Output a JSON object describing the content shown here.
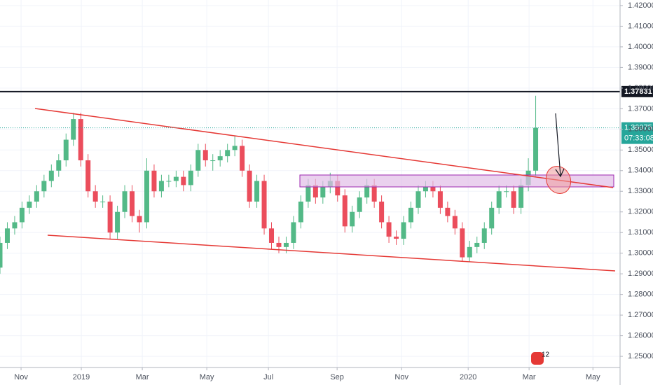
{
  "chart_data": {
    "type": "candlestick",
    "x": [
      0,
      1,
      2,
      3,
      4,
      5,
      6,
      7,
      8,
      9,
      10,
      11,
      12,
      13,
      14,
      15,
      16,
      17,
      18,
      19,
      20,
      21,
      22,
      23,
      24,
      25,
      26,
      27,
      28,
      29,
      30,
      31,
      32,
      33,
      34,
      35,
      36,
      37,
      38,
      39,
      40,
      41,
      42,
      43,
      44,
      45,
      46,
      47,
      48,
      49,
      50,
      51,
      52,
      53,
      54,
      55,
      56,
      57,
      58,
      59,
      60,
      61,
      62,
      63,
      64,
      65,
      66,
      67,
      68,
      69,
      70,
      71,
      72,
      73
    ],
    "open": [
      1.293,
      1.305,
      1.312,
      1.315,
      1.322,
      1.325,
      1.33,
      1.335,
      1.34,
      1.345,
      1.355,
      1.365,
      1.345,
      1.33,
      1.325,
      1.325,
      1.31,
      1.32,
      1.33,
      1.318,
      1.315,
      1.34,
      1.33,
      1.335,
      1.335,
      1.337,
      1.333,
      1.34,
      1.35,
      1.345,
      1.345,
      1.347,
      1.35,
      1.352,
      1.34,
      1.325,
      1.335,
      1.312,
      1.305,
      1.303,
      1.305,
      1.315,
      1.325,
      1.333,
      1.327,
      1.332,
      1.335,
      1.328,
      1.313,
      1.32,
      1.327,
      1.333,
      1.325,
      1.315,
      1.308,
      1.307,
      1.315,
      1.322,
      1.33,
      1.332,
      1.33,
      1.322,
      1.318,
      1.312,
      1.298,
      1.303,
      1.305,
      1.312,
      1.322,
      1.33,
      1.33,
      1.322,
      1.333,
      1.34
    ],
    "high": [
      1.308,
      1.315,
      1.318,
      1.325,
      1.328,
      1.333,
      1.338,
      1.343,
      1.348,
      1.358,
      1.368,
      1.368,
      1.348,
      1.333,
      1.328,
      1.328,
      1.323,
      1.333,
      1.333,
      1.321,
      1.346,
      1.343,
      1.338,
      1.338,
      1.34,
      1.34,
      1.343,
      1.353,
      1.353,
      1.348,
      1.35,
      1.353,
      1.357,
      1.355,
      1.343,
      1.338,
      1.338,
      1.315,
      1.308,
      1.308,
      1.318,
      1.328,
      1.336,
      1.336,
      1.335,
      1.339,
      1.338,
      1.331,
      1.323,
      1.33,
      1.336,
      1.336,
      1.328,
      1.318,
      1.311,
      1.318,
      1.325,
      1.333,
      1.335,
      1.335,
      1.333,
      1.325,
      1.321,
      1.315,
      1.306,
      1.308,
      1.315,
      1.325,
      1.333,
      1.333,
      1.333,
      1.336,
      1.346,
      1.3763
    ],
    "low": [
      1.29,
      1.302,
      1.309,
      1.312,
      1.319,
      1.322,
      1.327,
      1.332,
      1.337,
      1.342,
      1.352,
      1.342,
      1.327,
      1.322,
      1.322,
      1.307,
      1.307,
      1.317,
      1.315,
      1.31,
      1.312,
      1.327,
      1.327,
      1.332,
      1.332,
      1.33,
      1.33,
      1.337,
      1.342,
      1.34,
      1.342,
      1.344,
      1.347,
      1.337,
      1.322,
      1.322,
      1.309,
      1.302,
      1.3,
      1.3,
      1.302,
      1.312,
      1.322,
      1.324,
      1.324,
      1.329,
      1.325,
      1.31,
      1.31,
      1.317,
      1.324,
      1.322,
      1.312,
      1.305,
      1.304,
      1.304,
      1.312,
      1.319,
      1.327,
      1.327,
      1.319,
      1.315,
      1.309,
      1.296,
      1.296,
      1.3,
      1.302,
      1.309,
      1.319,
      1.327,
      1.319,
      1.319,
      1.33,
      1.337
    ],
    "close": [
      1.305,
      1.312,
      1.315,
      1.322,
      1.325,
      1.33,
      1.335,
      1.34,
      1.345,
      1.355,
      1.365,
      1.345,
      1.33,
      1.325,
      1.325,
      1.31,
      1.32,
      1.33,
      1.318,
      1.315,
      1.34,
      1.33,
      1.335,
      1.335,
      1.337,
      1.333,
      1.34,
      1.35,
      1.345,
      1.345,
      1.347,
      1.35,
      1.352,
      1.34,
      1.325,
      1.335,
      1.312,
      1.305,
      1.303,
      1.305,
      1.315,
      1.325,
      1.333,
      1.327,
      1.332,
      1.335,
      1.328,
      1.313,
      1.32,
      1.327,
      1.333,
      1.325,
      1.315,
      1.308,
      1.307,
      1.315,
      1.322,
      1.33,
      1.332,
      1.33,
      1.322,
      1.318,
      1.312,
      1.298,
      1.303,
      1.305,
      1.312,
      1.322,
      1.33,
      1.33,
      1.322,
      1.333,
      1.34,
      1.36075
    ],
    "up_color": "#53b987",
    "down_color": "#eb4d5c",
    "xlim": [
      0,
      84.5
    ],
    "xticks": [
      {
        "value": 2.87,
        "label": "Nov"
      },
      {
        "value": 11.08,
        "label": "2019"
      },
      {
        "value": 19.39,
        "label": "Mar"
      },
      {
        "value": 28.18,
        "label": "May"
      },
      {
        "value": 36.58,
        "label": "Jul"
      },
      {
        "value": 45.94,
        "label": "Sep"
      },
      {
        "value": 54.73,
        "label": "Nov"
      },
      {
        "value": 63.8,
        "label": "2020"
      },
      {
        "value": 72.1,
        "label": "Mar"
      },
      {
        "value": 80.8,
        "label": "May"
      }
    ],
    "ylim": [
      1.2446,
      1.4227
    ],
    "yticks": [
      {
        "value": 1.25,
        "label": "1.25000"
      },
      {
        "value": 1.26,
        "label": "1.26000"
      },
      {
        "value": 1.27,
        "label": "1.27000"
      },
      {
        "value": 1.28,
        "label": "1.28000"
      },
      {
        "value": 1.29,
        "label": "1.29000"
      },
      {
        "value": 1.3,
        "label": "1.30000"
      },
      {
        "value": 1.31,
        "label": "1.31000"
      },
      {
        "value": 1.32,
        "label": "1.32000"
      },
      {
        "value": 1.33,
        "label": "1.33000"
      },
      {
        "value": 1.34,
        "label": "1.34000"
      },
      {
        "value": 1.35,
        "label": "1.35000"
      },
      {
        "value": 1.36,
        "label": "1.36000"
      },
      {
        "value": 1.37,
        "label": "1.37000"
      },
      {
        "value": 1.38,
        "label": "1.38000"
      },
      {
        "value": 1.39,
        "label": "1.39000"
      },
      {
        "value": 1.4,
        "label": "1.40000"
      },
      {
        "value": 1.41,
        "label": "1.41000"
      },
      {
        "value": 1.42,
        "label": "1.42000"
      }
    ],
    "grid": true,
    "level_line": {
      "value": 1.37831,
      "color": "#131722"
    },
    "last_price": {
      "value": 1.36075,
      "color": "#26a69a",
      "countdown": "07:33:08"
    },
    "event_marker": "12"
  }
}
